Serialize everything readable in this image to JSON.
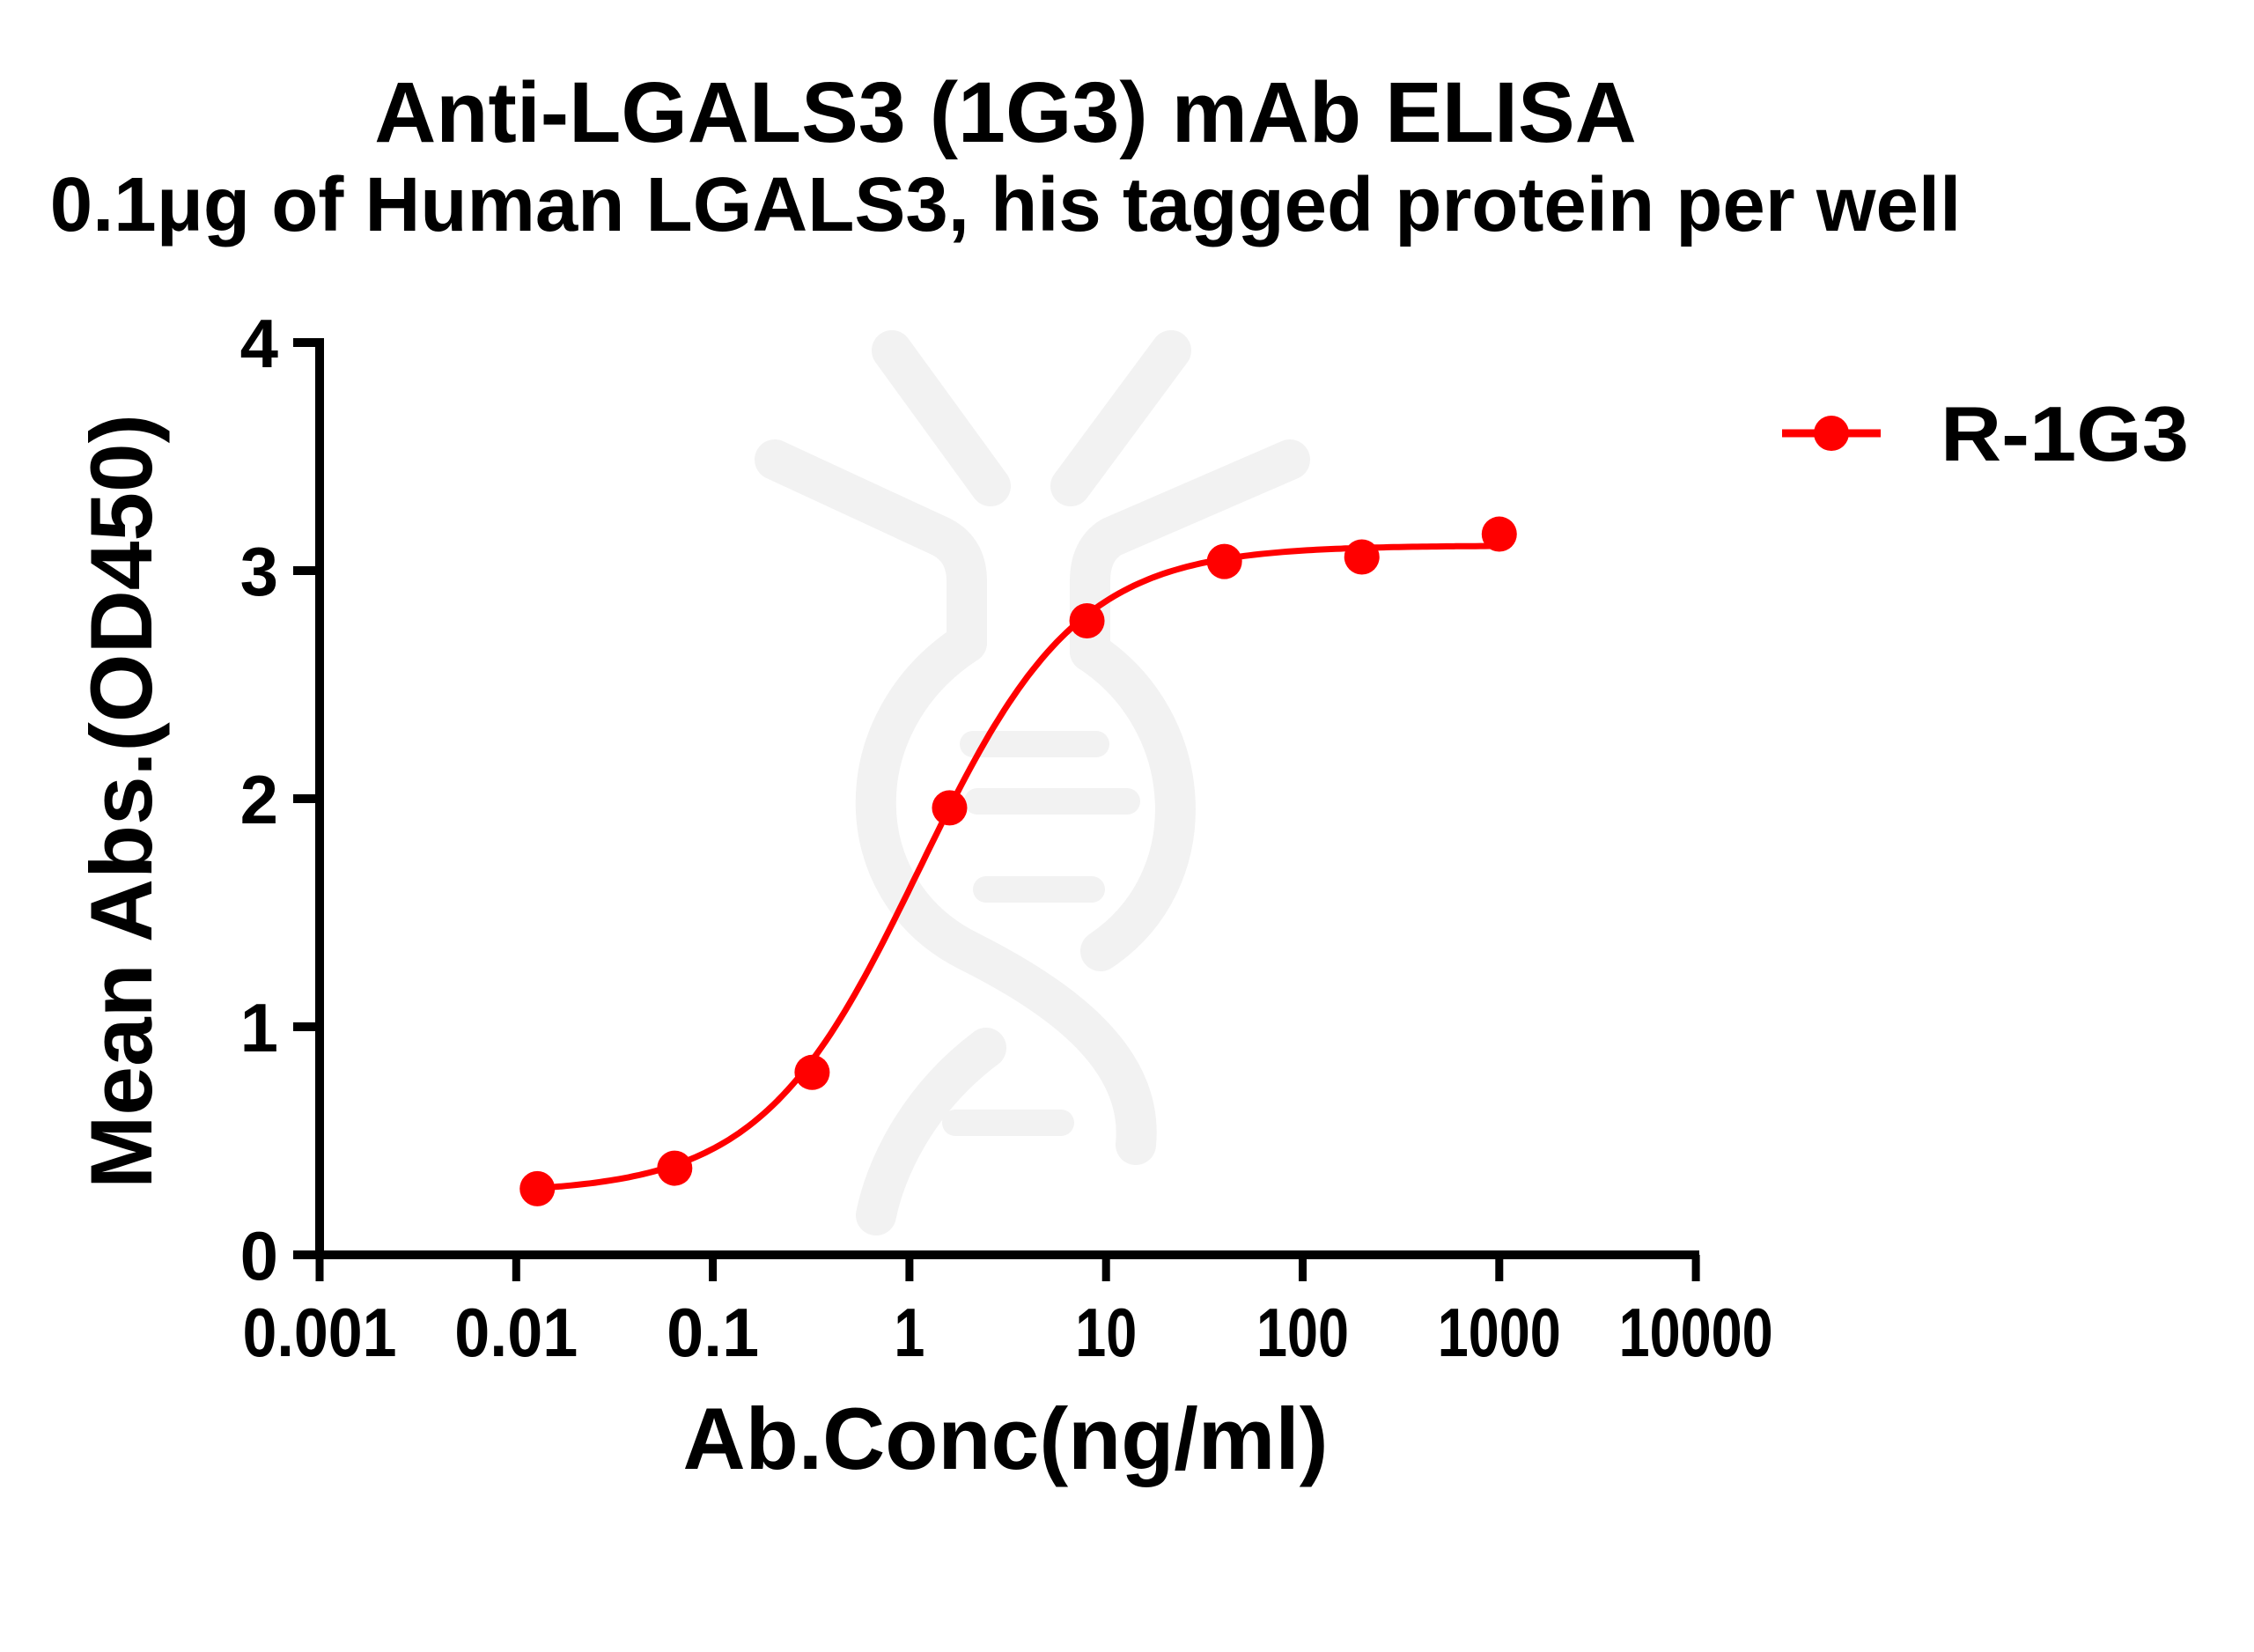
{
  "chart_data": {
    "type": "line",
    "title": "Anti-LGALS3 (1G3) mAb ELISA",
    "subtitle": "0.1μg of Human LGALS3, his tagged protein per well",
    "xlabel": "Ab.Conc(ng/ml)",
    "ylabel": "Mean Abs.(OD450)",
    "xscale": "log",
    "xlim": [
      0.001,
      10000
    ],
    "ylim": [
      0,
      4
    ],
    "x_ticks": [
      "0.001",
      "0.01",
      "0.1",
      "1",
      "10",
      "100",
      "1000",
      "10000"
    ],
    "y_ticks": [
      "0",
      "1",
      "2",
      "3",
      "4"
    ],
    "grid": false,
    "legend_position": "right",
    "series": [
      {
        "name": "R-1G3",
        "color": "#ff0000",
        "marker": "circle",
        "x": [
          0.0128,
          0.064,
          0.32,
          1.6,
          8,
          40,
          200,
          1000
        ],
        "y": [
          0.29,
          0.38,
          0.8,
          1.96,
          2.78,
          3.04,
          3.06,
          3.16
        ],
        "fit": {
          "model": "4PL",
          "bottom": 0.27,
          "top": 3.11,
          "ec50": 1.12,
          "hill": 1.08
        }
      }
    ]
  },
  "watermark": {
    "color": "#f2f2f2",
    "icon": "antibody-dna-icon"
  }
}
